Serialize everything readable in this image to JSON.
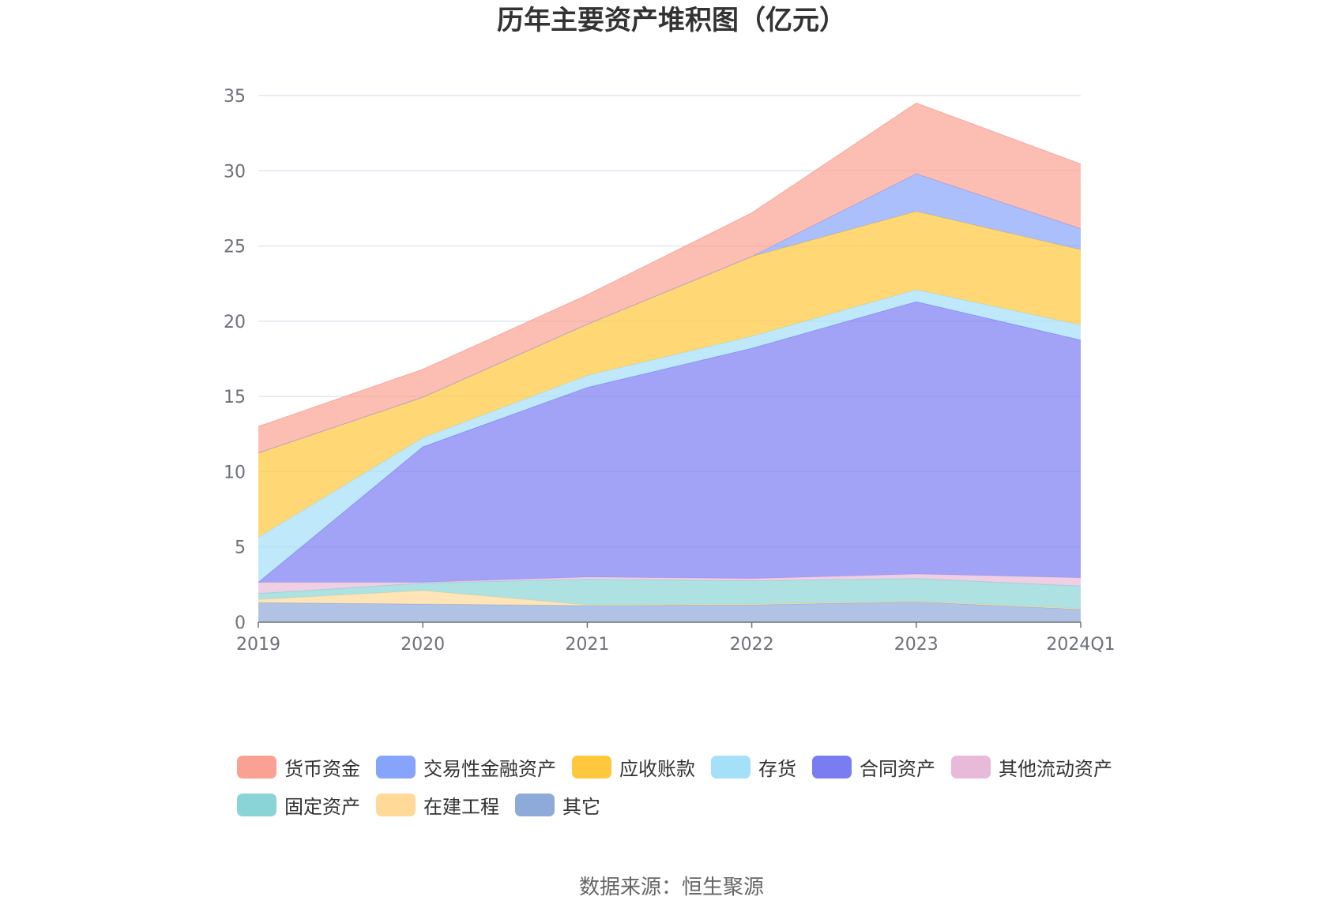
{
  "chart_data": {
    "type": "area",
    "stacked": true,
    "title": "历年主要资产堆积图（亿元）",
    "xlabel": "",
    "ylabel": "",
    "ylim": [
      0,
      35
    ],
    "yticks": [
      0,
      5,
      10,
      15,
      20,
      25,
      30,
      35
    ],
    "grid": true,
    "legend_position": "bottom",
    "categories": [
      "2019",
      "2020",
      "2021",
      "2022",
      "2023",
      "2024Q1"
    ],
    "series": [
      {
        "name": "其它",
        "color": "#8eaad8",
        "values": [
          1.3,
          1.2,
          1.1,
          1.15,
          1.35,
          0.85
        ]
      },
      {
        "name": "在建工程",
        "color": "#ffd998",
        "values": [
          0.2,
          0.9,
          0.05,
          0.05,
          0.05,
          0.05
        ]
      },
      {
        "name": "固定资产",
        "color": "#8ad4d6",
        "values": [
          0.4,
          0.5,
          1.7,
          1.55,
          1.5,
          1.5
        ]
      },
      {
        "name": "其他流动资产",
        "color": "#e7bad9",
        "values": [
          0.75,
          0.05,
          0.15,
          0.15,
          0.3,
          0.55
        ]
      },
      {
        "name": "合同资产",
        "color": "#7a7cf2",
        "values": [
          0.0,
          9.0,
          12.6,
          15.3,
          18.1,
          15.8
        ]
      },
      {
        "name": "存货",
        "color": "#a4e0f8",
        "values": [
          3.0,
          0.6,
          0.8,
          0.8,
          0.8,
          1.0
        ]
      },
      {
        "name": "应收账款",
        "color": "#ffc73b",
        "values": [
          5.6,
          2.7,
          3.4,
          5.3,
          5.2,
          5.0
        ]
      },
      {
        "name": "交易性金融资产",
        "color": "#86a4fb",
        "values": [
          0.0,
          0.0,
          0.0,
          0.0,
          2.5,
          1.4
        ]
      },
      {
        "name": "货币资金",
        "color": "#fba193",
        "values": [
          1.75,
          1.85,
          1.95,
          2.9,
          4.7,
          4.3
        ]
      }
    ],
    "legend_order": [
      "货币资金",
      "交易性金融资产",
      "应收账款",
      "存货",
      "合同资产",
      "其他流动资产",
      "固定资产",
      "在建工程",
      "其它"
    ],
    "area_opacity": 0.7
  },
  "source_note": "数据来源：恒生聚源"
}
